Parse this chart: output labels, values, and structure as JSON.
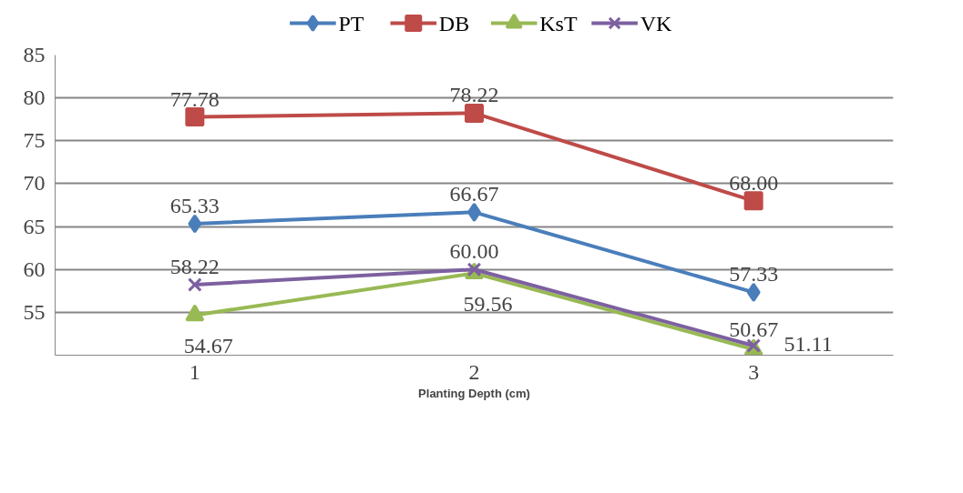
{
  "chart_data": {
    "type": "line",
    "xlabel": "Planting Depth (cm)",
    "x": [
      1,
      2,
      3
    ],
    "xlim": [
      0.5,
      3.5
    ],
    "xticks": [
      1,
      2,
      3
    ],
    "ylim": [
      50,
      85
    ],
    "yticks": [
      {
        "value": 50,
        "label": null
      },
      55,
      60,
      65,
      70,
      75,
      80,
      85
    ],
    "series": [
      {
        "name": "PT",
        "color": "#4a7ebb",
        "marker": "diamond",
        "values": [
          65.33,
          66.67,
          57.33
        ],
        "value_labels": [
          "65.33",
          "66.67",
          "57.33"
        ]
      },
      {
        "name": "DB",
        "color": "#be4b48",
        "marker": "square",
        "values": [
          77.78,
          78.22,
          68.0
        ],
        "value_labels": [
          "77.78",
          "78.22",
          "68.00"
        ]
      },
      {
        "name": "KsT",
        "color": "#98b954",
        "marker": "triangle",
        "values": [
          54.67,
          59.56,
          50.67
        ],
        "value_labels": [
          "54.67",
          "59.56",
          "50.67"
        ]
      },
      {
        "name": "VK",
        "color": "#7d60a0",
        "marker": "cross",
        "values": [
          58.22,
          60.0,
          51.11
        ],
        "value_labels": [
          "58.22",
          "60.00",
          "51.11"
        ]
      }
    ],
    "grid": "y",
    "legend": "top",
    "line_style": "solid"
  }
}
